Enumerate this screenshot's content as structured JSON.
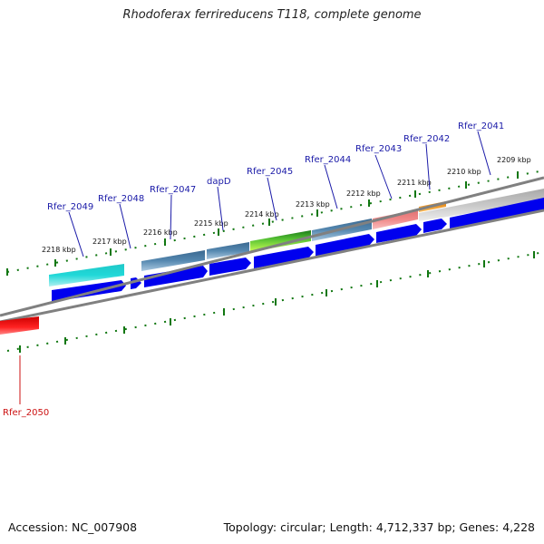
{
  "title": "Rhodoferax ferrireducens T118, complete genome",
  "footer": {
    "accession": "Accession: NC_007908",
    "topology": "Topology: circular; Length: 4,712,337 bp; Genes: 4,228"
  },
  "scale_labels": [
    "2209 kbp",
    "2210 kbp",
    "2211 kbp",
    "2212 kbp",
    "2213 kbp",
    "2214 kbp",
    "2215 kbp",
    "2216 kbp",
    "2217 kbp",
    "2218 kbp"
  ],
  "gene_labels": [
    "Rfer_2041",
    "Rfer_2042",
    "Rfer_2043",
    "Rfer_2044",
    "Rfer_2045",
    "dapD",
    "Rfer_2047",
    "Rfer_2048",
    "Rfer_2049",
    "Rfer_2050"
  ],
  "colors": {
    "cds_arrow": "#0000ee",
    "backbone": "#808080",
    "tick": "#117711",
    "label_blue": "#1a1aa8",
    "label_red": "#cc1111",
    "highlight_gene": "#ee0000"
  }
}
